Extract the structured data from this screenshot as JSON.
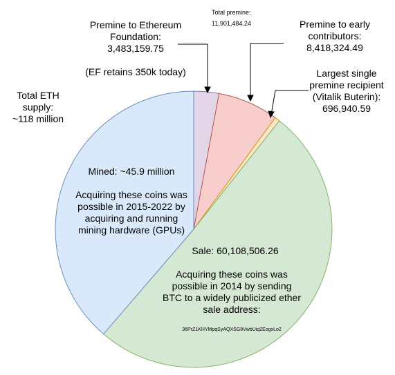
{
  "chart_data": {
    "type": "pie",
    "slices": [
      {
        "key": "foundation",
        "value": 3483159.75,
        "color": "#e1d5e7",
        "stroke": "#9673a6"
      },
      {
        "key": "early",
        "value": 8418324.49,
        "color": "#f8cecc",
        "stroke": "#b85450"
      },
      {
        "key": "vitalik",
        "value": 696940.59,
        "color": "#ffe6cc",
        "stroke": "#d79b00"
      },
      {
        "key": "sale",
        "value": 60108506.26,
        "color": "#d5e8d4",
        "stroke": "#82b366"
      },
      {
        "key": "mined",
        "value": 45900000,
        "color": "#dae8fc",
        "stroke": "#6c8ebf"
      }
    ]
  },
  "labels": {
    "ef_title": "Premine to Ethereum",
    "ef_title2": "Foundation:",
    "ef_value": "3,483,159.75",
    "ef_note": "(EF retains 350k today)",
    "total_premine_label": "Total premine:",
    "total_premine_value": "11,901,484.24",
    "early_title": "Premine to early",
    "early_title2": "contributors:",
    "early_value": "8,418,324.49",
    "vitalik_title": "Largest single",
    "vitalik_title2": "premine recipient",
    "vitalik_title3": "(Vitalik Buterin):",
    "vitalik_value": "696,940.59",
    "total_eth1": "Total ETH",
    "total_eth2": "supply:",
    "total_eth3": "~118 million",
    "mined_title": "Mined: ~45.9 million",
    "mined_desc1": "Acquiring these coins was",
    "mined_desc2": "possible in 2015-2022 by",
    "mined_desc3": "acquiring and running",
    "mined_desc4": "mining hardware (GPUs)",
    "sale_title": "Sale: 60,108,506.26",
    "sale_desc1": "Acquiring these coins was",
    "sale_desc2": "possible in 2014 by sending",
    "sale_desc3": "BTC to a widely publicized ether",
    "sale_desc4": "sale address:",
    "sale_address": "36PrZ1KHYMpqSyAQXSG8VwbUiq2EogxLo2"
  }
}
